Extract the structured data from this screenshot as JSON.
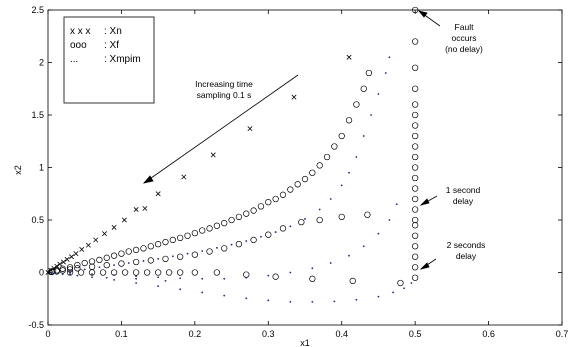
{
  "chart_data": {
    "type": "scatter",
    "title": "",
    "xlabel": "x1",
    "ylabel": "x2",
    "xlim": [
      0,
      0.7
    ],
    "ylim": [
      -0.5,
      2.5
    ],
    "x_ticks": [
      "0",
      "0.1",
      "0.2",
      "0.3",
      "0.4",
      "0.5",
      "0.6",
      "0.7"
    ],
    "y_ticks": [
      "-0.5",
      "0",
      "0.5",
      "1",
      "1.5",
      "2",
      "2.5"
    ],
    "x_tick_values": [
      0,
      0.1,
      0.2,
      0.3,
      0.4,
      0.5,
      0.6,
      0.7
    ],
    "y_tick_values": [
      -0.5,
      0,
      0.5,
      1,
      1.5,
      2,
      2.5
    ],
    "grid": false,
    "legend_position": "top-left",
    "legend": [
      {
        "symbol": "x x x",
        "label": ": Xn"
      },
      {
        "symbol": "ooo",
        "label": ": Xf"
      },
      {
        "symbol": "...",
        "label": ": Xmpim"
      }
    ],
    "annotations": {
      "increasing": [
        "Increasing time",
        "sampling 0.1 s"
      ],
      "fault": [
        "Fault",
        "occurs",
        "(no delay)"
      ],
      "delay1": [
        "1 second",
        "delay"
      ],
      "delay2": [
        "2 seconds",
        "delay"
      ]
    },
    "series": [
      {
        "marker": "x",
        "color": "#000000",
        "points": [
          [
            0.0,
            0.0
          ],
          [
            0.004,
            0.02
          ],
          [
            0.008,
            0.04
          ],
          [
            0.012,
            0.06
          ],
          [
            0.016,
            0.08
          ],
          [
            0.021,
            0.1
          ],
          [
            0.026,
            0.125
          ],
          [
            0.032,
            0.15
          ],
          [
            0.038,
            0.18
          ],
          [
            0.046,
            0.22
          ],
          [
            0.055,
            0.26
          ],
          [
            0.065,
            0.31
          ],
          [
            0.077,
            0.37
          ],
          [
            0.09,
            0.43
          ],
          [
            0.104,
            0.5
          ],
          [
            0.12,
            0.6
          ],
          [
            0.132,
            0.61
          ],
          [
            0.15,
            0.75
          ],
          [
            0.185,
            0.91
          ],
          [
            0.225,
            1.12
          ],
          [
            0.275,
            1.37
          ],
          [
            0.335,
            1.67
          ],
          [
            0.41,
            2.05
          ]
        ]
      },
      {
        "marker": "o",
        "color": "#000000",
        "points": [
          [
            0.005,
            0.01
          ],
          [
            0.012,
            0.02
          ],
          [
            0.02,
            0.035
          ],
          [
            0.03,
            0.05
          ],
          [
            0.04,
            0.07
          ],
          [
            0.05,
            0.09
          ],
          [
            0.06,
            0.105
          ],
          [
            0.07,
            0.12
          ],
          [
            0.08,
            0.14
          ],
          [
            0.09,
            0.16
          ],
          [
            0.1,
            0.18
          ],
          [
            0.11,
            0.2
          ],
          [
            0.12,
            0.215
          ],
          [
            0.13,
            0.23
          ],
          [
            0.14,
            0.25
          ],
          [
            0.15,
            0.27
          ],
          [
            0.16,
            0.29
          ],
          [
            0.17,
            0.31
          ],
          [
            0.18,
            0.33
          ],
          [
            0.19,
            0.35
          ],
          [
            0.2,
            0.375
          ],
          [
            0.21,
            0.4
          ],
          [
            0.22,
            0.42
          ],
          [
            0.23,
            0.445
          ],
          [
            0.24,
            0.47
          ],
          [
            0.25,
            0.5
          ],
          [
            0.26,
            0.53
          ],
          [
            0.27,
            0.56
          ],
          [
            0.28,
            0.59
          ],
          [
            0.29,
            0.63
          ],
          [
            0.3,
            0.67
          ],
          [
            0.31,
            0.7
          ],
          [
            0.32,
            0.74
          ],
          [
            0.33,
            0.79
          ],
          [
            0.34,
            0.84
          ],
          [
            0.35,
            0.89
          ],
          [
            0.36,
            0.95
          ],
          [
            0.37,
            1.02
          ],
          [
            0.38,
            1.1
          ],
          [
            0.39,
            1.2
          ],
          [
            0.4,
            1.3
          ],
          [
            0.41,
            1.45
          ],
          [
            0.42,
            1.6
          ],
          [
            0.43,
            1.75
          ],
          [
            0.437,
            1.9
          ],
          [
            0.005,
            0.005
          ],
          [
            0.012,
            0.01
          ],
          [
            0.02,
            0.02
          ],
          [
            0.03,
            0.03
          ],
          [
            0.04,
            0.04
          ],
          [
            0.06,
            0.055
          ],
          [
            0.08,
            0.07
          ],
          [
            0.1,
            0.085
          ],
          [
            0.12,
            0.1
          ],
          [
            0.14,
            0.115
          ],
          [
            0.16,
            0.13
          ],
          [
            0.18,
            0.15
          ],
          [
            0.2,
            0.17
          ],
          [
            0.22,
            0.2
          ],
          [
            0.24,
            0.23
          ],
          [
            0.26,
            0.27
          ],
          [
            0.28,
            0.31
          ],
          [
            0.3,
            0.36
          ],
          [
            0.32,
            0.42
          ],
          [
            0.345,
            0.48
          ],
          [
            0.37,
            0.5
          ],
          [
            0.4,
            0.53
          ],
          [
            0.435,
            0.55
          ],
          [
            0.03,
            0.0
          ],
          [
            0.045,
            0.0
          ],
          [
            0.06,
            0.0
          ],
          [
            0.075,
            0.0
          ],
          [
            0.09,
            0.0
          ],
          [
            0.105,
            0.0
          ],
          [
            0.12,
            0.0
          ],
          [
            0.135,
            0.0
          ],
          [
            0.15,
            0.0
          ],
          [
            0.165,
            0.0
          ],
          [
            0.18,
            0.0
          ],
          [
            0.2,
            0.0
          ],
          [
            0.23,
            0.0
          ],
          [
            0.27,
            -0.02
          ],
          [
            0.31,
            -0.04
          ],
          [
            0.36,
            -0.06
          ],
          [
            0.415,
            -0.08
          ],
          [
            0.48,
            -0.1
          ],
          [
            0.5,
            -0.05
          ],
          [
            0.5,
            0.05
          ],
          [
            0.5,
            0.15
          ],
          [
            0.5,
            0.25
          ],
          [
            0.5,
            0.35
          ],
          [
            0.5,
            0.45
          ],
          [
            0.5,
            0.5
          ],
          [
            0.5,
            0.6
          ],
          [
            0.5,
            0.7
          ],
          [
            0.5,
            0.8
          ],
          [
            0.5,
            0.9
          ],
          [
            0.5,
            1.0
          ],
          [
            0.5,
            1.1
          ],
          [
            0.5,
            1.2
          ],
          [
            0.5,
            1.3
          ],
          [
            0.5,
            1.4
          ],
          [
            0.5,
            1.5
          ],
          [
            0.5,
            1.6
          ],
          [
            0.5,
            1.75
          ],
          [
            0.5,
            1.95
          ],
          [
            0.5,
            2.2
          ],
          [
            0.5,
            2.5
          ]
        ]
      },
      {
        "marker": "dot",
        "color": "#1a2a7a",
        "points": [
          [
            0.01,
            0.004
          ],
          [
            0.03,
            0.015
          ],
          [
            0.05,
            0.03
          ],
          [
            0.07,
            0.05
          ],
          [
            0.09,
            0.07
          ],
          [
            0.11,
            0.09
          ],
          [
            0.13,
            0.11
          ],
          [
            0.15,
            0.13
          ],
          [
            0.17,
            0.155
          ],
          [
            0.19,
            0.18
          ],
          [
            0.21,
            0.205
          ],
          [
            0.23,
            0.235
          ],
          [
            0.25,
            0.265
          ],
          [
            0.27,
            0.3
          ],
          [
            0.29,
            0.34
          ],
          [
            0.31,
            0.385
          ],
          [
            0.33,
            0.44
          ],
          [
            0.35,
            0.51
          ],
          [
            0.37,
            0.6
          ],
          [
            0.385,
            0.7
          ],
          [
            0.4,
            0.83
          ],
          [
            0.41,
            0.95
          ],
          [
            0.42,
            1.1
          ],
          [
            0.43,
            1.3
          ],
          [
            0.44,
            1.5
          ],
          [
            0.45,
            1.7
          ],
          [
            0.46,
            1.9
          ],
          [
            0.465,
            2.05
          ],
          [
            0.03,
            -0.005
          ],
          [
            0.06,
            -0.015
          ],
          [
            0.09,
            -0.025
          ],
          [
            0.12,
            -0.035
          ],
          [
            0.15,
            -0.045
          ],
          [
            0.18,
            -0.055
          ],
          [
            0.21,
            -0.06
          ],
          [
            0.24,
            -0.06
          ],
          [
            0.27,
            -0.05
          ],
          [
            0.3,
            -0.03
          ],
          [
            0.33,
            0.0
          ],
          [
            0.36,
            0.04
          ],
          [
            0.385,
            0.09
          ],
          [
            0.41,
            0.16
          ],
          [
            0.43,
            0.25
          ],
          [
            0.45,
            0.37
          ],
          [
            0.465,
            0.5
          ],
          [
            0.475,
            0.65
          ],
          [
            0.03,
            -0.02
          ],
          [
            0.06,
            -0.045
          ],
          [
            0.09,
            -0.07
          ],
          [
            0.12,
            -0.1
          ],
          [
            0.15,
            -0.13
          ],
          [
            0.18,
            -0.16
          ],
          [
            0.21,
            -0.19
          ],
          [
            0.24,
            -0.22
          ],
          [
            0.27,
            -0.245
          ],
          [
            0.3,
            -0.265
          ],
          [
            0.33,
            -0.28
          ],
          [
            0.36,
            -0.28
          ],
          [
            0.39,
            -0.275
          ],
          [
            0.42,
            -0.26
          ],
          [
            0.45,
            -0.23
          ],
          [
            0.47,
            -0.19
          ],
          [
            0.485,
            -0.15
          ],
          [
            0.495,
            -0.1
          ],
          [
            0.005,
            -0.005
          ],
          [
            0.02,
            -0.015
          ],
          [
            0.04,
            -0.03
          ],
          [
            0.08,
            -0.05
          ],
          [
            0.12,
            -0.06
          ],
          [
            0.16,
            -0.08
          ]
        ]
      }
    ]
  }
}
